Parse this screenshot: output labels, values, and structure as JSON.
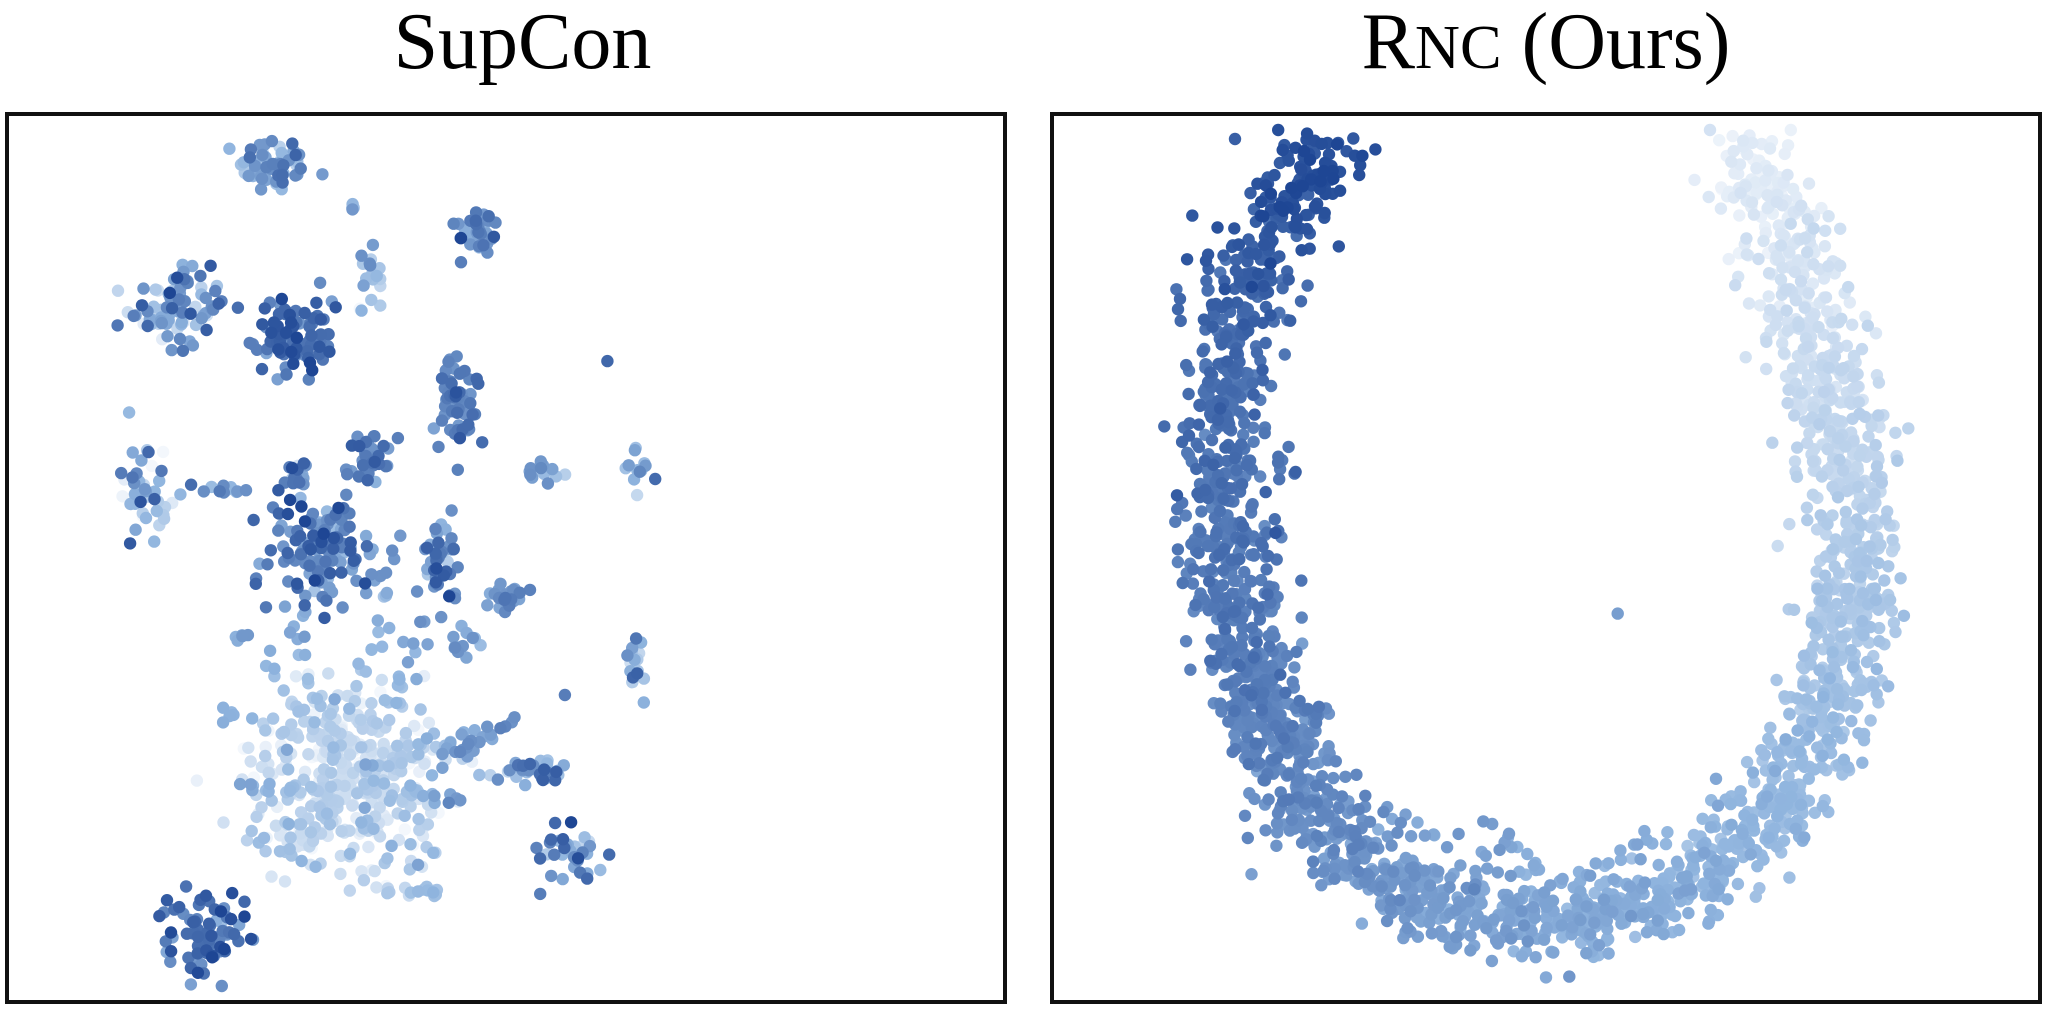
{
  "panels": [
    {
      "title": "SupCon"
    },
    {
      "title": "RNC (Ours)"
    }
  ],
  "colors": {
    "light": "#f3f7fc",
    "mid": "#8fb4de",
    "dark": "#1e4694",
    "frame": "#111111"
  },
  "chart_data": [
    {
      "type": "scatter",
      "title": "SupCon",
      "xlim": [
        0,
        1
      ],
      "ylim": [
        0,
        1
      ],
      "axes_visible": false,
      "grid": false,
      "color_encoding": "target value (light = low, dark = high)",
      "clusters": [
        {
          "cx": 0.26,
          "cy": 0.96,
          "sx": 0.018,
          "sy": 0.016,
          "n": 60,
          "v": 0.55,
          "vs": 0.2
        },
        {
          "cx": 0.34,
          "cy": 0.91,
          "sx": 0.004,
          "sy": 0.004,
          "n": 4,
          "v": 0.45,
          "vs": 0.1
        },
        {
          "cx": 0.47,
          "cy": 0.88,
          "sx": 0.014,
          "sy": 0.016,
          "n": 40,
          "v": 0.7,
          "vs": 0.15
        },
        {
          "cx": 0.36,
          "cy": 0.83,
          "sx": 0.007,
          "sy": 0.025,
          "n": 18,
          "v": 0.45,
          "vs": 0.15
        },
        {
          "cx": 0.16,
          "cy": 0.79,
          "sx": 0.025,
          "sy": 0.022,
          "n": 90,
          "v": 0.55,
          "vs": 0.2
        },
        {
          "cx": 0.28,
          "cy": 0.76,
          "sx": 0.02,
          "sy": 0.022,
          "n": 90,
          "v": 0.8,
          "vs": 0.1
        },
        {
          "cx": 0.45,
          "cy": 0.68,
          "sx": 0.012,
          "sy": 0.028,
          "n": 60,
          "v": 0.75,
          "vs": 0.1
        },
        {
          "cx": 0.355,
          "cy": 0.62,
          "sx": 0.011,
          "sy": 0.015,
          "n": 35,
          "v": 0.7,
          "vs": 0.1
        },
        {
          "cx": 0.128,
          "cy": 0.58,
          "sx": 0.012,
          "sy": 0.03,
          "n": 45,
          "v": 0.5,
          "vs": 0.25
        },
        {
          "cx": 0.28,
          "cy": 0.59,
          "sx": 0.008,
          "sy": 0.013,
          "n": 18,
          "v": 0.6,
          "vs": 0.15
        },
        {
          "cx": 0.21,
          "cy": 0.58,
          "sx": 0.015,
          "sy": 0.005,
          "n": 12,
          "v": 0.55,
          "vs": 0.15
        },
        {
          "cx": 0.535,
          "cy": 0.6,
          "sx": 0.012,
          "sy": 0.008,
          "n": 14,
          "v": 0.55,
          "vs": 0.15
        },
        {
          "cx": 0.64,
          "cy": 0.6,
          "sx": 0.01,
          "sy": 0.015,
          "n": 12,
          "v": 0.55,
          "vs": 0.15
        },
        {
          "cx": 0.31,
          "cy": 0.51,
          "sx": 0.028,
          "sy": 0.035,
          "n": 130,
          "v": 0.7,
          "vs": 0.15
        },
        {
          "cx": 0.43,
          "cy": 0.5,
          "sx": 0.012,
          "sy": 0.025,
          "n": 45,
          "v": 0.7,
          "vs": 0.15
        },
        {
          "cx": 0.5,
          "cy": 0.45,
          "sx": 0.012,
          "sy": 0.01,
          "n": 25,
          "v": 0.65,
          "vs": 0.1
        },
        {
          "cx": 0.46,
          "cy": 0.4,
          "sx": 0.01,
          "sy": 0.01,
          "n": 12,
          "v": 0.6,
          "vs": 0.1
        },
        {
          "cx": 0.635,
          "cy": 0.38,
          "sx": 0.007,
          "sy": 0.02,
          "n": 16,
          "v": 0.55,
          "vs": 0.2
        },
        {
          "cx": 0.53,
          "cy": 0.25,
          "sx": 0.018,
          "sy": 0.008,
          "n": 30,
          "v": 0.65,
          "vs": 0.15
        },
        {
          "cx": 0.57,
          "cy": 0.16,
          "sx": 0.017,
          "sy": 0.022,
          "n": 35,
          "v": 0.65,
          "vs": 0.2
        },
        {
          "cx": 0.41,
          "cy": 0.11,
          "sx": 0.018,
          "sy": 0.005,
          "n": 16,
          "v": 0.4,
          "vs": 0.1
        },
        {
          "cx": 0.19,
          "cy": 0.06,
          "sx": 0.02,
          "sy": 0.025,
          "n": 90,
          "v": 0.8,
          "vs": 0.12
        },
        {
          "cx": 0.34,
          "cy": 0.25,
          "sx": 0.05,
          "sy": 0.045,
          "n": 260,
          "v": 0.2,
          "vs": 0.15
        },
        {
          "cx": 0.33,
          "cy": 0.17,
          "sx": 0.055,
          "sy": 0.025,
          "n": 60,
          "v": 0.25,
          "vs": 0.15
        }
      ],
      "arms": [
        {
          "x0": 0.33,
          "y0": 0.26,
          "x1": 0.22,
          "y1": 0.42,
          "n": 22,
          "v0": 0.2,
          "v1": 0.6
        },
        {
          "x0": 0.33,
          "y0": 0.26,
          "x1": 0.27,
          "y1": 0.44,
          "n": 22,
          "v0": 0.2,
          "v1": 0.6
        },
        {
          "x0": 0.34,
          "y0": 0.27,
          "x1": 0.38,
          "y1": 0.52,
          "n": 28,
          "v0": 0.2,
          "v1": 0.7
        },
        {
          "x0": 0.35,
          "y0": 0.27,
          "x1": 0.42,
          "y1": 0.42,
          "n": 22,
          "v0": 0.2,
          "v1": 0.65
        },
        {
          "x0": 0.36,
          "y0": 0.26,
          "x1": 0.51,
          "y1": 0.31,
          "n": 28,
          "v0": 0.2,
          "v1": 0.7
        },
        {
          "x0": 0.36,
          "y0": 0.25,
          "x1": 0.47,
          "y1": 0.28,
          "n": 20,
          "v0": 0.2,
          "v1": 0.7
        },
        {
          "x0": 0.34,
          "y0": 0.23,
          "x1": 0.22,
          "y1": 0.23,
          "n": 22,
          "v0": 0.2,
          "v1": 0.6
        },
        {
          "x0": 0.33,
          "y0": 0.23,
          "x1": 0.26,
          "y1": 0.14,
          "n": 18,
          "v0": 0.2,
          "v1": 0.5
        },
        {
          "x0": 0.36,
          "y0": 0.24,
          "x1": 0.46,
          "y1": 0.21,
          "n": 18,
          "v0": 0.2,
          "v1": 0.7
        },
        {
          "x0": 0.31,
          "y0": 0.29,
          "x1": 0.2,
          "y1": 0.32,
          "n": 14,
          "v0": 0.2,
          "v1": 0.55
        }
      ],
      "singles": [
        {
          "x": 0.605,
          "y": 0.73,
          "v": 0.85
        },
        {
          "x": 0.561,
          "y": 0.34,
          "v": 0.75
        },
        {
          "x": 0.18,
          "y": 0.24,
          "v": 0.05
        }
      ]
    },
    {
      "type": "scatter",
      "title": "RNC (Ours)",
      "xlim": [
        0,
        1
      ],
      "ylim": [
        0,
        1
      ],
      "axes_visible": false,
      "grid": false,
      "color_encoding": "target value (light = low, dark = high)",
      "ring": {
        "path": [
          {
            "x": 0.28,
            "y": 0.97,
            "v": 0.97
          },
          {
            "x": 0.22,
            "y": 0.9,
            "v": 0.92
          },
          {
            "x": 0.18,
            "y": 0.8,
            "v": 0.85
          },
          {
            "x": 0.16,
            "y": 0.65,
            "v": 0.8
          },
          {
            "x": 0.17,
            "y": 0.48,
            "v": 0.76
          },
          {
            "x": 0.2,
            "y": 0.32,
            "v": 0.72
          },
          {
            "x": 0.27,
            "y": 0.18,
            "v": 0.66
          },
          {
            "x": 0.38,
            "y": 0.1,
            "v": 0.6
          },
          {
            "x": 0.5,
            "y": 0.07,
            "v": 0.55
          },
          {
            "x": 0.64,
            "y": 0.11,
            "v": 0.5
          },
          {
            "x": 0.74,
            "y": 0.2,
            "v": 0.46
          },
          {
            "x": 0.8,
            "y": 0.33,
            "v": 0.4
          },
          {
            "x": 0.83,
            "y": 0.48,
            "v": 0.33
          },
          {
            "x": 0.81,
            "y": 0.62,
            "v": 0.25
          },
          {
            "x": 0.78,
            "y": 0.76,
            "v": 0.18
          },
          {
            "x": 0.75,
            "y": 0.88,
            "v": 0.12
          },
          {
            "x": 0.71,
            "y": 0.97,
            "v": 0.05
          }
        ],
        "n": 2400,
        "width": 0.024
      },
      "arms": [
        {
          "x0": 0.5,
          "y0": 0.13,
          "x1": 0.42,
          "y1": 0.21,
          "n": 12,
          "v0": 0.55,
          "v1": 0.58
        },
        {
          "x0": 0.5,
          "y0": 0.12,
          "x1": 0.62,
          "y1": 0.17,
          "n": 14,
          "v0": 0.52,
          "v1": 0.5
        },
        {
          "x0": 0.45,
          "y0": 0.15,
          "x1": 0.3,
          "y1": 0.22,
          "n": 14,
          "v0": 0.58,
          "v1": 0.62
        },
        {
          "x0": 0.27,
          "y0": 0.33,
          "x1": 0.24,
          "y1": 0.26,
          "n": 10,
          "v0": 0.7,
          "v1": 0.68
        },
        {
          "x0": 0.23,
          "y0": 0.62,
          "x1": 0.21,
          "y1": 0.5,
          "n": 12,
          "v0": 0.78,
          "v1": 0.76
        }
      ],
      "singles": [
        {
          "x": 0.13,
          "y": 0.9,
          "v": 0.92
        },
        {
          "x": 0.3,
          "y": 0.97,
          "v": 0.96
        },
        {
          "x": 0.575,
          "y": 0.435,
          "v": 0.6
        },
        {
          "x": 0.5,
          "y": 0.01,
          "v": 0.55
        },
        {
          "x": 0.245,
          "y": 0.4,
          "v": 0.6
        }
      ]
    }
  ]
}
